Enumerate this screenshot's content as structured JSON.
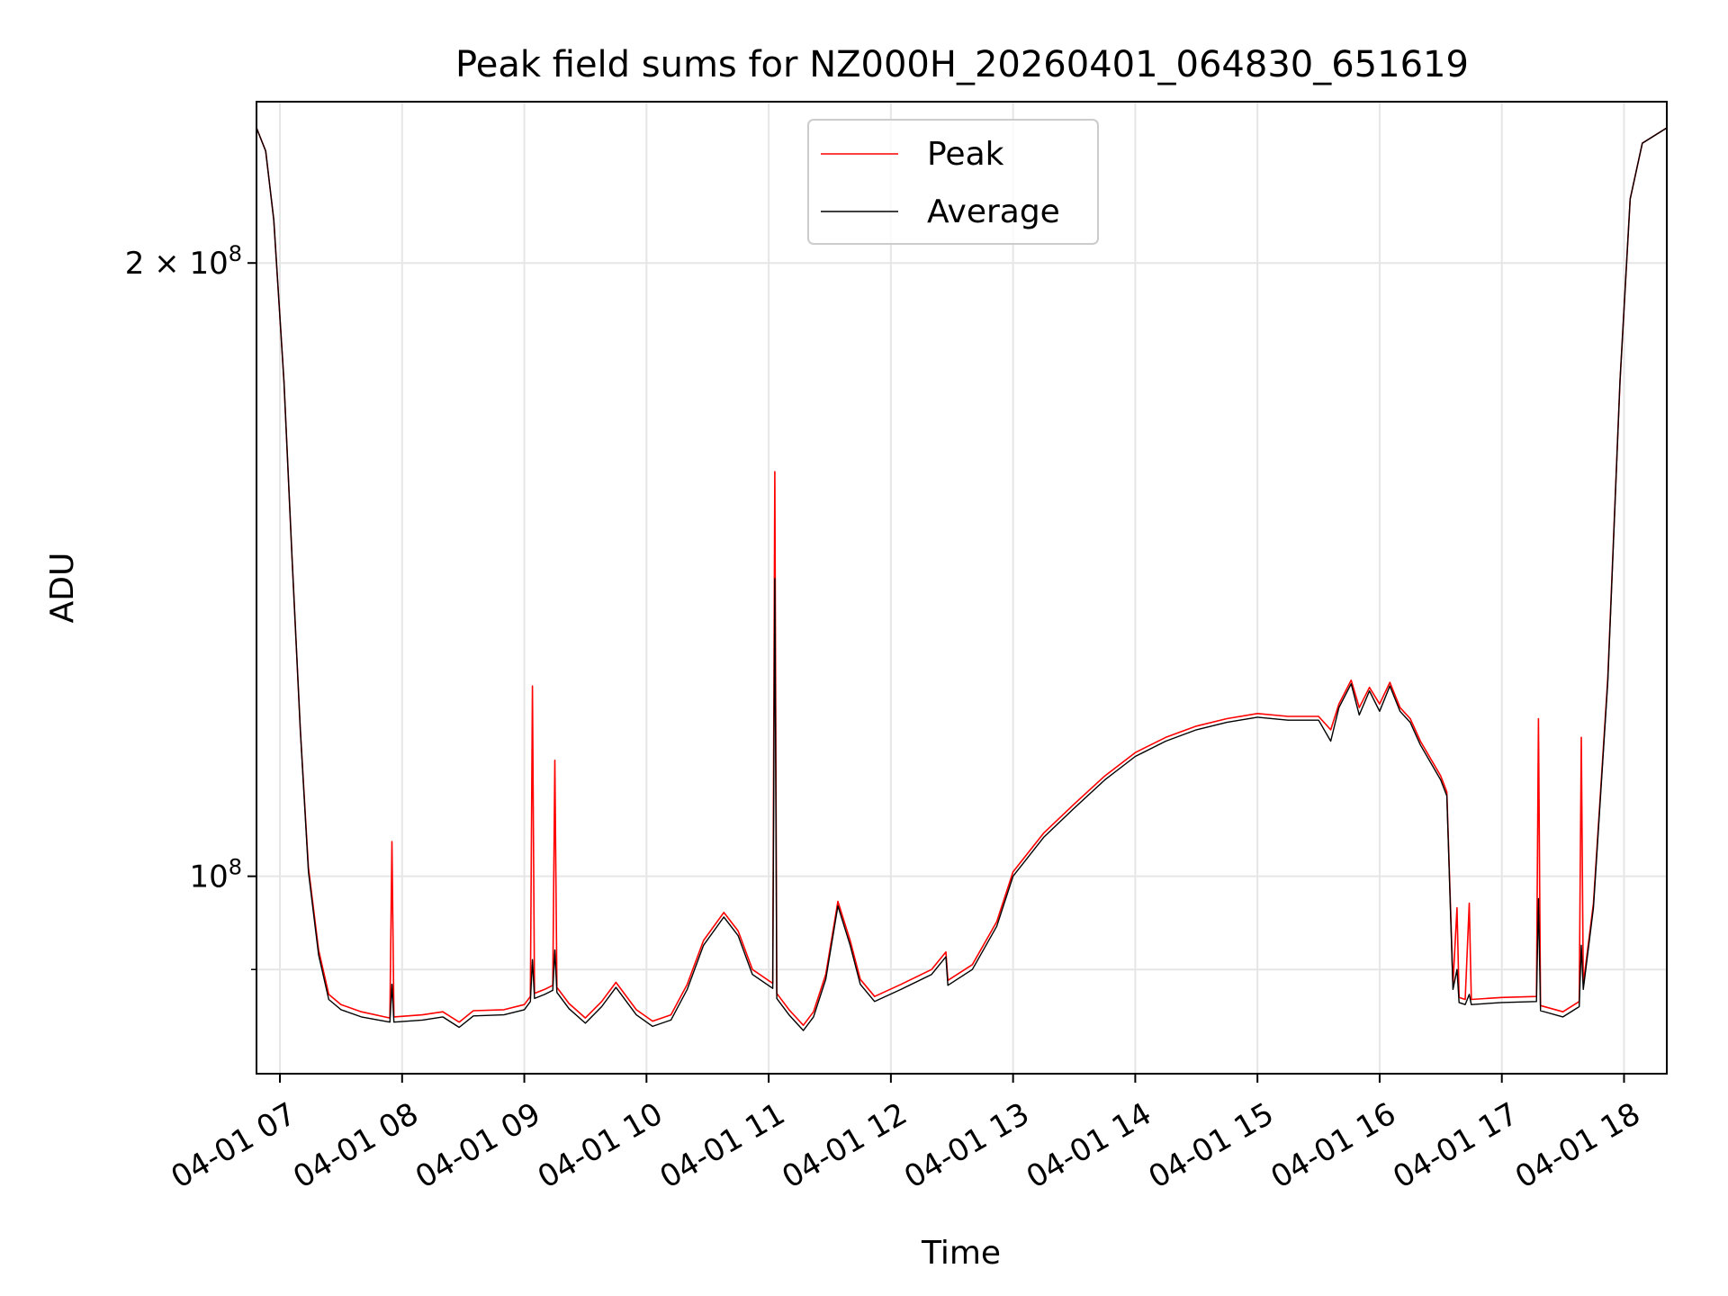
{
  "chart_data": {
    "type": "line",
    "title": "Peak field sums for NZ000H_20260401_064830_651619",
    "xlabel": "Time",
    "ylabel": "ADU",
    "y_scale": "log",
    "ylim": [
      80000000,
      240000000
    ],
    "xlim": [
      "2026-04-01 06:48:30",
      "2026-04-01 18:21:00"
    ],
    "grid": true,
    "legend_location": "upper center",
    "x_ticks": [
      {
        "t": "2026-04-01 07:00",
        "label": "04-01 07"
      },
      {
        "t": "2026-04-01 08:00",
        "label": "04-01 08"
      },
      {
        "t": "2026-04-01 09:00",
        "label": "04-01 09"
      },
      {
        "t": "2026-04-01 10:00",
        "label": "04-01 10"
      },
      {
        "t": "2026-04-01 11:00",
        "label": "04-01 11"
      },
      {
        "t": "2026-04-01 12:00",
        "label": "04-01 12"
      },
      {
        "t": "2026-04-01 13:00",
        "label": "04-01 13"
      },
      {
        "t": "2026-04-01 14:00",
        "label": "04-01 14"
      },
      {
        "t": "2026-04-01 15:00",
        "label": "04-01 15"
      },
      {
        "t": "2026-04-01 16:00",
        "label": "04-01 16"
      },
      {
        "t": "2026-04-01 17:00",
        "label": "04-01 17"
      },
      {
        "t": "2026-04-01 18:00",
        "label": "04-01 18"
      }
    ],
    "y_major_ticks": [
      {
        "value": 100000000,
        "label_base": "10",
        "label_exp": "8",
        "label_coef": ""
      },
      {
        "value": 200000000,
        "label_base": "10",
        "label_exp": "8",
        "label_coef": "2 × "
      }
    ],
    "y_minor_gridlines": [
      90000000
    ],
    "series": [
      {
        "name": "Peak",
        "color": "#ff0000",
        "points": [
          [
            "2026-04-01 06:48:30",
            233000000
          ],
          [
            "2026-04-01 06:53",
            227000000
          ],
          [
            "2026-04-01 06:57",
            210000000
          ],
          [
            "2026-04-01 07:02",
            175000000
          ],
          [
            "2026-04-01 07:06",
            143000000
          ],
          [
            "2026-04-01 07:10",
            118000000
          ],
          [
            "2026-04-01 07:14",
            101000000
          ],
          [
            "2026-04-01 07:19",
            92000000
          ],
          [
            "2026-04-01 07:24",
            87500000
          ],
          [
            "2026-04-01 07:30",
            86500000
          ],
          [
            "2026-04-01 07:40",
            85800000
          ],
          [
            "2026-04-01 07:54",
            85200000
          ],
          [
            "2026-04-01 07:55",
            104000000
          ],
          [
            "2026-04-01 07:56",
            85300000
          ],
          [
            "2026-04-01 08:10",
            85500000
          ],
          [
            "2026-04-01 08:20",
            85800000
          ],
          [
            "2026-04-01 08:28",
            84800000
          ],
          [
            "2026-04-01 08:35",
            85900000
          ],
          [
            "2026-04-01 08:50",
            86000000
          ],
          [
            "2026-04-01 09:00",
            86500000
          ],
          [
            "2026-04-01 09:03",
            87300000
          ],
          [
            "2026-04-01 09:04",
            124000000
          ],
          [
            "2026-04-01 09:05",
            87600000
          ],
          [
            "2026-04-01 09:10",
            88000000
          ],
          [
            "2026-04-01 09:14",
            88400000
          ],
          [
            "2026-04-01 09:15",
            114000000
          ],
          [
            "2026-04-01 09:16",
            88200000
          ],
          [
            "2026-04-01 09:22",
            86600000
          ],
          [
            "2026-04-01 09:30",
            85200000
          ],
          [
            "2026-04-01 09:38",
            86800000
          ],
          [
            "2026-04-01 09:45",
            88700000
          ],
          [
            "2026-04-01 09:55",
            86000000
          ],
          [
            "2026-04-01 10:03",
            84900000
          ],
          [
            "2026-04-01 10:12",
            85500000
          ],
          [
            "2026-04-01 10:20",
            88500000
          ],
          [
            "2026-04-01 10:28",
            93000000
          ],
          [
            "2026-04-01 10:38",
            96000000
          ],
          [
            "2026-04-01 10:45",
            94000000
          ],
          [
            "2026-04-01 10:52",
            90000000
          ],
          [
            "2026-04-01 11:02",
            88600000
          ],
          [
            "2026-04-01 11:03",
            158000000
          ],
          [
            "2026-04-01 11:04",
            87600000
          ],
          [
            "2026-04-01 11:10",
            86000000
          ],
          [
            "2026-04-01 11:17",
            84500000
          ],
          [
            "2026-04-01 11:22",
            85800000
          ],
          [
            "2026-04-01 11:28",
            89500000
          ],
          [
            "2026-04-01 11:34",
            97200000
          ],
          [
            "2026-04-01 11:40",
            93000000
          ],
          [
            "2026-04-01 11:45",
            89000000
          ],
          [
            "2026-04-01 11:52",
            87300000
          ],
          [
            "2026-04-01 12:05",
            88500000
          ],
          [
            "2026-04-01 12:20",
            90000000
          ],
          [
            "2026-04-01 12:27",
            91800000
          ],
          [
            "2026-04-01 12:28",
            88900000
          ],
          [
            "2026-04-01 12:40",
            90500000
          ],
          [
            "2026-04-01 12:52",
            95000000
          ],
          [
            "2026-04-01 13:00",
            100500000
          ],
          [
            "2026-04-01 13:15",
            105000000
          ],
          [
            "2026-04-01 13:30",
            108500000
          ],
          [
            "2026-04-01 13:45",
            112000000
          ],
          [
            "2026-04-01 14:00",
            115000000
          ],
          [
            "2026-04-01 14:15",
            117000000
          ],
          [
            "2026-04-01 14:30",
            118500000
          ],
          [
            "2026-04-01 14:45",
            119500000
          ],
          [
            "2026-04-01 15:00",
            120200000
          ],
          [
            "2026-04-01 15:15",
            119800000
          ],
          [
            "2026-04-01 15:30",
            119800000
          ],
          [
            "2026-04-01 15:36",
            118000000
          ],
          [
            "2026-04-01 15:40",
            121500000
          ],
          [
            "2026-04-01 15:46",
            124800000
          ],
          [
            "2026-04-01 15:50",
            121000000
          ],
          [
            "2026-04-01 15:55",
            123800000
          ],
          [
            "2026-04-01 16:00",
            121500000
          ],
          [
            "2026-04-01 16:05",
            124500000
          ],
          [
            "2026-04-01 16:10",
            121000000
          ],
          [
            "2026-04-01 16:15",
            119500000
          ],
          [
            "2026-04-01 16:20",
            116500000
          ],
          [
            "2026-04-01 16:30",
            112000000
          ],
          [
            "2026-04-01 16:33",
            110000000
          ],
          [
            "2026-04-01 16:36",
            88500000
          ],
          [
            "2026-04-01 16:38",
            96500000
          ],
          [
            "2026-04-01 16:39",
            87200000
          ],
          [
            "2026-04-01 16:42",
            87000000
          ],
          [
            "2026-04-01 16:44",
            97000000
          ],
          [
            "2026-04-01 16:45",
            87000000
          ],
          [
            "2026-04-01 17:00",
            87200000
          ],
          [
            "2026-04-01 17:17",
            87300000
          ],
          [
            "2026-04-01 17:18",
            119500000
          ],
          [
            "2026-04-01 17:19",
            86400000
          ],
          [
            "2026-04-01 17:30",
            85800000
          ],
          [
            "2026-04-01 17:38",
            86800000
          ],
          [
            "2026-04-01 17:39",
            117000000
          ],
          [
            "2026-04-01 17:40",
            88500000
          ],
          [
            "2026-04-01 17:45",
            97000000
          ],
          [
            "2026-04-01 17:52",
            125000000
          ],
          [
            "2026-04-01 17:58",
            175000000
          ],
          [
            "2026-04-01 18:03",
            215000000
          ],
          [
            "2026-04-01 18:09",
            229000000
          ],
          [
            "2026-04-01 18:21",
            233000000
          ]
        ]
      },
      {
        "name": "Average",
        "color": "#000000",
        "points": [
          [
            "2026-04-01 06:48:30",
            233000000
          ],
          [
            "2026-04-01 06:53",
            227000000
          ],
          [
            "2026-04-01 06:57",
            210000000
          ],
          [
            "2026-04-01 07:02",
            175000000
          ],
          [
            "2026-04-01 07:06",
            143000000
          ],
          [
            "2026-04-01 07:10",
            118000000
          ],
          [
            "2026-04-01 07:14",
            100500000
          ],
          [
            "2026-04-01 07:19",
            91500000
          ],
          [
            "2026-04-01 07:24",
            87000000
          ],
          [
            "2026-04-01 07:30",
            86000000
          ],
          [
            "2026-04-01 07:40",
            85300000
          ],
          [
            "2026-04-01 07:54",
            84800000
          ],
          [
            "2026-04-01 07:55",
            88500000
          ],
          [
            "2026-04-01 07:56",
            84800000
          ],
          [
            "2026-04-01 08:10",
            85000000
          ],
          [
            "2026-04-01 08:20",
            85300000
          ],
          [
            "2026-04-01 08:28",
            84300000
          ],
          [
            "2026-04-01 08:35",
            85400000
          ],
          [
            "2026-04-01 08:50",
            85500000
          ],
          [
            "2026-04-01 09:00",
            86000000
          ],
          [
            "2026-04-01 09:03",
            86800000
          ],
          [
            "2026-04-01 09:04",
            91000000
          ],
          [
            "2026-04-01 09:05",
            87100000
          ],
          [
            "2026-04-01 09:10",
            87500000
          ],
          [
            "2026-04-01 09:14",
            87900000
          ],
          [
            "2026-04-01 09:15",
            92000000
          ],
          [
            "2026-04-01 09:16",
            87700000
          ],
          [
            "2026-04-01 09:22",
            86100000
          ],
          [
            "2026-04-01 09:30",
            84700000
          ],
          [
            "2026-04-01 09:38",
            86300000
          ],
          [
            "2026-04-01 09:45",
            88200000
          ],
          [
            "2026-04-01 09:55",
            85500000
          ],
          [
            "2026-04-01 10:03",
            84400000
          ],
          [
            "2026-04-01 10:12",
            85000000
          ],
          [
            "2026-04-01 10:20",
            88000000
          ],
          [
            "2026-04-01 10:28",
            92500000
          ],
          [
            "2026-04-01 10:38",
            95500000
          ],
          [
            "2026-04-01 10:45",
            93500000
          ],
          [
            "2026-04-01 10:52",
            89500000
          ],
          [
            "2026-04-01 11:02",
            88100000
          ],
          [
            "2026-04-01 11:03",
            140000000
          ],
          [
            "2026-04-01 11:04",
            87100000
          ],
          [
            "2026-04-01 11:10",
            85500000
          ],
          [
            "2026-04-01 11:17",
            84000000
          ],
          [
            "2026-04-01 11:22",
            85300000
          ],
          [
            "2026-04-01 11:28",
            89000000
          ],
          [
            "2026-04-01 11:34",
            96700000
          ],
          [
            "2026-04-01 11:40",
            92500000
          ],
          [
            "2026-04-01 11:45",
            88500000
          ],
          [
            "2026-04-01 11:52",
            86800000
          ],
          [
            "2026-04-01 12:05",
            88000000
          ],
          [
            "2026-04-01 12:20",
            89500000
          ],
          [
            "2026-04-01 12:27",
            91300000
          ],
          [
            "2026-04-01 12:28",
            88400000
          ],
          [
            "2026-04-01 12:40",
            90000000
          ],
          [
            "2026-04-01 12:52",
            94500000
          ],
          [
            "2026-04-01 13:00",
            100000000
          ],
          [
            "2026-04-01 13:15",
            104500000
          ],
          [
            "2026-04-01 13:30",
            108000000
          ],
          [
            "2026-04-01 13:45",
            111500000
          ],
          [
            "2026-04-01 14:00",
            114500000
          ],
          [
            "2026-04-01 14:15",
            116500000
          ],
          [
            "2026-04-01 14:30",
            118000000
          ],
          [
            "2026-04-01 14:45",
            119000000
          ],
          [
            "2026-04-01 15:00",
            119700000
          ],
          [
            "2026-04-01 15:15",
            119300000
          ],
          [
            "2026-04-01 15:30",
            119300000
          ],
          [
            "2026-04-01 15:36",
            116500000
          ],
          [
            "2026-04-01 15:40",
            121000000
          ],
          [
            "2026-04-01 15:46",
            124300000
          ],
          [
            "2026-04-01 15:50",
            120000000
          ],
          [
            "2026-04-01 15:55",
            123300000
          ],
          [
            "2026-04-01 16:00",
            120500000
          ],
          [
            "2026-04-01 16:05",
            124000000
          ],
          [
            "2026-04-01 16:10",
            120500000
          ],
          [
            "2026-04-01 16:15",
            119000000
          ],
          [
            "2026-04-01 16:20",
            116000000
          ],
          [
            "2026-04-01 16:30",
            111500000
          ],
          [
            "2026-04-01 16:33",
            109500000
          ],
          [
            "2026-04-01 16:36",
            88000000
          ],
          [
            "2026-04-01 16:38",
            90000000
          ],
          [
            "2026-04-01 16:39",
            86700000
          ],
          [
            "2026-04-01 16:42",
            86500000
          ],
          [
            "2026-04-01 16:44",
            87500000
          ],
          [
            "2026-04-01 16:45",
            86500000
          ],
          [
            "2026-04-01 17:00",
            86700000
          ],
          [
            "2026-04-01 17:17",
            86800000
          ],
          [
            "2026-04-01 17:18",
            97500000
          ],
          [
            "2026-04-01 17:19",
            85900000
          ],
          [
            "2026-04-01 17:30",
            85300000
          ],
          [
            "2026-04-01 17:38",
            86300000
          ],
          [
            "2026-04-01 17:39",
            92500000
          ],
          [
            "2026-04-01 17:40",
            88000000
          ],
          [
            "2026-04-01 17:45",
            96500000
          ],
          [
            "2026-04-01 17:52",
            124500000
          ],
          [
            "2026-04-01 17:58",
            175000000
          ],
          [
            "2026-04-01 18:03",
            215000000
          ],
          [
            "2026-04-01 18:09",
            229000000
          ],
          [
            "2026-04-01 18:21",
            233000000
          ]
        ]
      }
    ]
  }
}
